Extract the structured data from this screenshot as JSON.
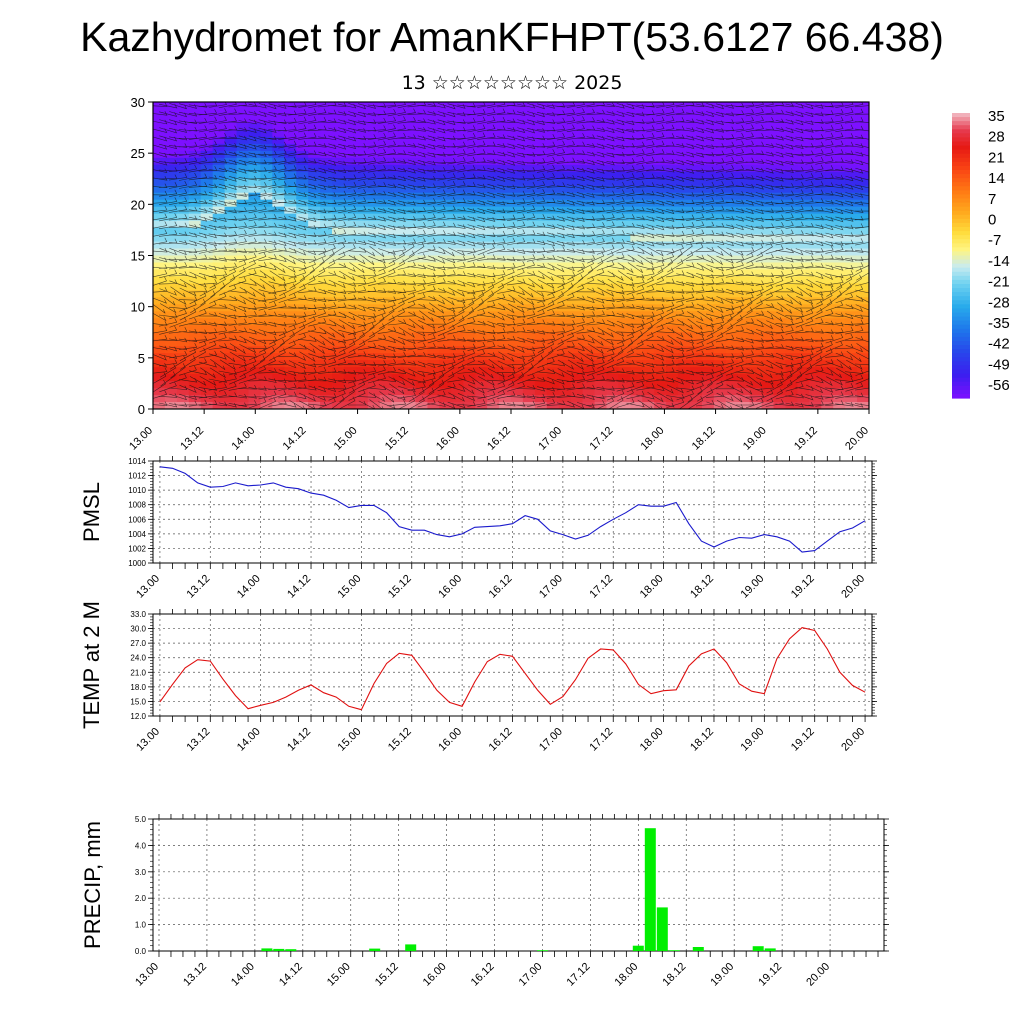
{
  "header": {
    "title": "Kazhydromet for AmanKFHPT(53.6127 66.438)",
    "subtitle": "13 ☆☆☆☆☆☆☆☆ 2025"
  },
  "colors": {
    "pmsl_line": "#1a1acc",
    "temp_line": "#e01010",
    "precip_bar": "#00ee00",
    "colorbar_top": "#f2c0c8",
    "colorbar_bottom": "#7a10ff"
  },
  "chart_data": [
    {
      "type": "heatmap",
      "description_key": "cross-section",
      "x_ticks": [
        "13.00",
        "13.12",
        "14.00",
        "14.12",
        "15.00",
        "15.12",
        "16.00",
        "16.12",
        "17.00",
        "17.12",
        "18.00",
        "18.12",
        "19.00",
        "19.12",
        "20.00"
      ],
      "y_ticks": [
        "0",
        "5",
        "10",
        "15",
        "20",
        "25",
        "30"
      ],
      "ylim": [
        0,
        30
      ],
      "colorbar_labels": [
        "35",
        "28",
        "21",
        "14",
        "7",
        "0",
        "-7",
        "-14",
        "-21",
        "-28",
        "-35",
        "-42",
        "-49",
        "-56"
      ],
      "colorbar_range": [
        -60,
        40
      ],
      "overlay": "wind barbs"
    },
    {
      "type": "line",
      "ylabel": "PMSL",
      "x_ticks": [
        "13.00",
        "13.12",
        "14.00",
        "14.12",
        "15.00",
        "15.12",
        "16.00",
        "16.12",
        "17.00",
        "17.12",
        "18.00",
        "18.12",
        "19.00",
        "19.12",
        "20.00"
      ],
      "y_ticks": [
        "1014",
        "1012",
        "1010",
        "1008",
        "1006",
        "1004",
        "1002",
        "1000"
      ],
      "ylim": [
        1000,
        1014
      ],
      "grid": true,
      "series": [
        {
          "values": [
            1013.2,
            1013.0,
            1012.3,
            1011.0,
            1010.4,
            1010.5,
            1011.0,
            1010.6,
            1010.7,
            1011.0,
            1010.4,
            1010.2,
            1009.6,
            1009.3,
            1008.6,
            1007.6,
            1007.9,
            1007.9,
            1006.9,
            1005.0,
            1004.5,
            1004.5,
            1003.9,
            1003.6,
            1004.0,
            1004.9,
            1005.0,
            1005.1,
            1005.4,
            1006.5,
            1006.0,
            1004.4,
            1003.9,
            1003.3,
            1003.8,
            1005.0,
            1006.0,
            1006.9,
            1008.0,
            1007.8,
            1007.8,
            1008.3,
            1005.4,
            1003.0,
            1002.2,
            1003.0,
            1003.5,
            1003.4,
            1003.9,
            1003.6,
            1003.0,
            1001.5,
            1001.7,
            1003.0,
            1004.3,
            1004.8,
            1005.8
          ]
        }
      ]
    },
    {
      "type": "line",
      "ylabel": "TEMP at 2 M",
      "x_ticks": [
        "13.00",
        "13.12",
        "14.00",
        "14.12",
        "15.00",
        "15.12",
        "16.00",
        "16.12",
        "17.00",
        "17.12",
        "18.00",
        "18.12",
        "19.00",
        "19.12",
        "20.00"
      ],
      "y_ticks": [
        "33.0",
        "30.0",
        "27.0",
        "24.0",
        "21.0",
        "18.0",
        "15.0",
        "12.0"
      ],
      "ylim": [
        12,
        33
      ],
      "grid": true,
      "series": [
        {
          "values": [
            14.9,
            18.5,
            21.9,
            23.6,
            23.3,
            19.6,
            16.2,
            13.5,
            14.2,
            14.8,
            15.9,
            17.3,
            18.4,
            16.8,
            15.9,
            14.0,
            13.3,
            18.7,
            22.8,
            24.9,
            24.5,
            21.0,
            17.3,
            14.8,
            14.0,
            19.0,
            23.2,
            24.7,
            24.3,
            20.8,
            17.3,
            14.4,
            16.0,
            19.5,
            23.9,
            25.8,
            25.6,
            22.7,
            18.5,
            16.6,
            17.2,
            17.4,
            22.3,
            24.8,
            25.8,
            23.0,
            18.6,
            17.1,
            16.6,
            23.8,
            27.9,
            30.2,
            29.6,
            25.8,
            21.0,
            18.3,
            16.9
          ]
        }
      ]
    },
    {
      "type": "bar",
      "ylabel": "PRECIP, mm",
      "x_ticks": [
        "13.00",
        "13.12",
        "14.00",
        "14.12",
        "15.00",
        "15.12",
        "16.00",
        "16.12",
        "17.00",
        "17.12",
        "18.00",
        "18.12",
        "19.00",
        "19.12",
        "20.00"
      ],
      "y_ticks": [
        "5.0",
        "4.0",
        "3.0",
        "2.0",
        "1.0",
        "0.0"
      ],
      "ylim": [
        0,
        5
      ],
      "grid": true,
      "bars_index": [
        9,
        10,
        11,
        18,
        21,
        32,
        40,
        41,
        42,
        43,
        45,
        50,
        51
      ],
      "bars_value": [
        0.1,
        0.08,
        0.07,
        0.09,
        0.25,
        0.03,
        0.2,
        4.65,
        1.65,
        0.03,
        0.15,
        0.18,
        0.1
      ]
    }
  ]
}
